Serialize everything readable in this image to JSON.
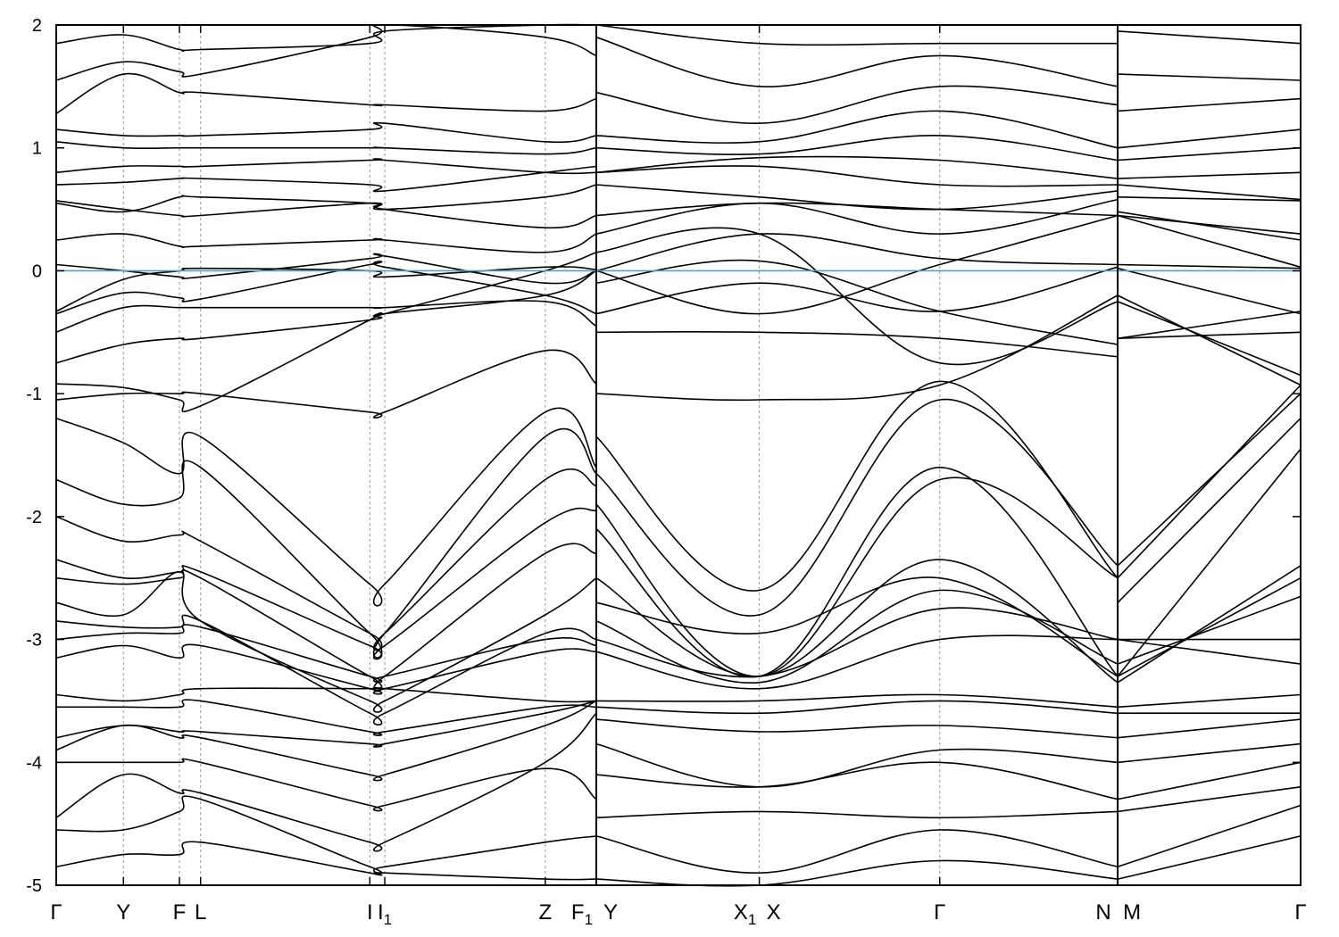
{
  "chart_data": {
    "type": "line",
    "title": "",
    "xlabel": "",
    "ylabel": "",
    "ylim": [
      -5,
      2
    ],
    "grid": false,
    "yticks": [
      "2",
      "1",
      "0",
      "-1",
      "-2",
      "-3",
      "-4",
      "-5"
    ],
    "fermi_level": 0,
    "kpoints": [
      {
        "label": "Γ",
        "sub": "",
        "x": 0.0
      },
      {
        "label": "Y",
        "sub": "",
        "x": 0.054
      },
      {
        "label": "F",
        "sub": "",
        "x": 0.099
      },
      {
        "label": "L",
        "sub": "",
        "x": 0.116
      },
      {
        "label": "I",
        "sub": "",
        "x": 0.252
      },
      {
        "label": "I",
        "sub": "1",
        "x": 0.264
      },
      {
        "label": "Z",
        "sub": "",
        "x": 0.393
      },
      {
        "label": "F",
        "sub": "1",
        "x": 0.434
      },
      {
        "label": "Y",
        "sub": "",
        "x": 0.434
      },
      {
        "label": "X",
        "sub": "1",
        "x": 0.565
      },
      {
        "label": "X",
        "sub": "",
        "x": 0.565
      },
      {
        "label": "Γ",
        "sub": "",
        "x": 0.71
      },
      {
        "label": "N",
        "sub": "",
        "x": 0.853
      },
      {
        "label": "M",
        "sub": "",
        "x": 0.853
      },
      {
        "label": "Γ",
        "sub": "",
        "x": 1.0
      }
    ],
    "path_breaks": [
      0.434,
      0.853
    ],
    "segment_nodes": [
      [
        0.0,
        0.054,
        0.099,
        0.116,
        0.252,
        0.264,
        0.393,
        0.434
      ],
      [
        0.434,
        0.565,
        0.71,
        0.853
      ],
      [
        0.853,
        1.0
      ]
    ],
    "series": [
      {
        "segments": [
          [
            -0.33,
            -0.07,
            0.0,
            0.02,
            0.0,
            -0.05,
            0.03,
            0.01
          ],
          [
            -0.1,
            0.08,
            -0.33,
            -0.6
          ],
          [
            -0.55,
            -0.33
          ]
        ]
      },
      {
        "segments": [
          [
            -0.35,
            -0.18,
            -0.22,
            -0.23,
            0.05,
            0.03,
            -0.2,
            -0.35
          ],
          [
            -0.35,
            -0.1,
            -0.33,
            0.03
          ],
          [
            0.02,
            -0.35
          ]
        ]
      },
      {
        "segments": [
          [
            -0.5,
            -0.3,
            -0.3,
            -0.3,
            -0.3,
            -0.3,
            -0.25,
            -0.45
          ],
          [
            -0.5,
            -0.5,
            -0.55,
            -0.7
          ],
          [
            -0.55,
            -0.5
          ]
        ]
      },
      {
        "segments": [
          [
            -0.75,
            -0.6,
            -0.55,
            -0.55,
            -0.4,
            -0.35,
            -0.2,
            0.0
          ],
          [
            0.0,
            -0.35,
            0.05,
            0.45
          ],
          [
            0.45,
            0.03
          ]
        ]
      },
      {
        "segments": [
          [
            -0.92,
            -0.95,
            -1.05,
            -1.1,
            -0.4,
            -0.35,
            0.0,
            0.15
          ],
          [
            0.15,
            0.3,
            -0.75,
            -0.25
          ],
          [
            -0.25,
            -0.85
          ]
        ]
      },
      {
        "segments": [
          [
            -1.05,
            -1.0,
            -1.0,
            -1.0,
            -1.15,
            -1.15,
            -0.65,
            -0.92
          ],
          [
            -1.0,
            -1.05,
            -0.93,
            -0.2
          ],
          [
            -0.2,
            -0.93
          ]
        ]
      },
      {
        "segments": [
          [
            0.05,
            0.0,
            -0.05,
            -0.05,
            0.1,
            0.12,
            -0.1,
            0.0
          ],
          [
            0.0,
            0.3,
            0.1,
            0.05
          ],
          [
            0.05,
            0.02
          ]
        ]
      },
      {
        "segments": [
          [
            0.25,
            0.3,
            0.2,
            0.2,
            0.25,
            0.25,
            0.15,
            0.3
          ],
          [
            0.3,
            0.55,
            0.3,
            0.58
          ],
          [
            0.48,
            0.25
          ]
        ]
      },
      {
        "segments": [
          [
            0.55,
            0.48,
            0.6,
            0.6,
            0.55,
            0.5,
            0.35,
            0.45
          ],
          [
            0.45,
            0.55,
            0.5,
            0.45
          ],
          [
            0.45,
            0.3
          ]
        ]
      },
      {
        "segments": [
          [
            0.57,
            0.5,
            0.45,
            0.45,
            0.55,
            0.5,
            0.6,
            0.7
          ],
          [
            0.7,
            0.6,
            0.5,
            0.65
          ],
          [
            0.6,
            0.57
          ]
        ]
      },
      {
        "segments": [
          [
            0.7,
            0.72,
            0.75,
            0.75,
            0.7,
            0.65,
            0.8,
            0.85
          ],
          [
            0.8,
            0.85,
            0.7,
            0.7
          ],
          [
            0.7,
            0.58
          ]
        ]
      },
      {
        "segments": [
          [
            0.8,
            0.85,
            0.85,
            0.85,
            0.9,
            0.9,
            0.8,
            0.8
          ],
          [
            0.8,
            0.92,
            0.9,
            0.75
          ],
          [
            0.75,
            0.8
          ]
        ]
      },
      {
        "segments": [
          [
            1.05,
            1.0,
            1.0,
            1.0,
            1.0,
            1.0,
            0.95,
            1.0
          ],
          [
            1.0,
            0.95,
            1.1,
            0.9
          ],
          [
            0.9,
            1.0
          ]
        ]
      },
      {
        "segments": [
          [
            1.15,
            1.1,
            1.1,
            1.1,
            1.15,
            1.2,
            1.05,
            1.1
          ],
          [
            1.1,
            1.05,
            1.3,
            1.0
          ],
          [
            1.0,
            1.15
          ]
        ]
      },
      {
        "segments": [
          [
            1.28,
            1.6,
            1.45,
            1.45,
            1.35,
            1.35,
            1.3,
            1.4
          ],
          [
            1.45,
            1.2,
            1.5,
            1.35
          ],
          [
            1.3,
            1.4
          ]
        ]
      },
      {
        "segments": [
          [
            1.55,
            1.7,
            1.62,
            1.6,
            1.9,
            2.0,
            1.9,
            1.75
          ],
          [
            1.9,
            1.5,
            1.75,
            1.5
          ],
          [
            1.6,
            1.55
          ]
        ]
      },
      {
        "segments": [
          [
            1.85,
            1.92,
            1.8,
            1.8,
            1.85,
            1.95,
            2.05,
            2.1
          ],
          [
            2.0,
            1.85,
            1.85,
            1.85
          ],
          [
            1.95,
            1.85
          ]
        ]
      },
      {
        "segments": [
          [
            -1.2,
            -1.4,
            -1.65,
            -1.35,
            -2.55,
            -2.55,
            -1.15,
            -1.6
          ],
          [
            -1.35,
            -2.6,
            -0.9,
            -2.5
          ],
          [
            -2.5,
            -0.93
          ]
        ]
      },
      {
        "segments": [
          [
            -1.7,
            -1.9,
            -1.85,
            -1.6,
            -2.95,
            -2.95,
            -1.35,
            -1.65
          ],
          [
            -1.65,
            -2.8,
            -1.05,
            -2.4
          ],
          [
            -2.4,
            -1.0
          ]
        ]
      },
      {
        "segments": [
          [
            -2.0,
            -2.2,
            -2.15,
            -2.2,
            -2.95,
            -2.95,
            -1.7,
            -1.75
          ],
          [
            -1.9,
            -3.3,
            -1.7,
            -2.5
          ],
          [
            -2.7,
            -1.2
          ]
        ]
      },
      {
        "segments": [
          [
            -2.35,
            -2.5,
            -2.45,
            -2.45,
            -3.05,
            -3.05,
            -2.05,
            -1.95
          ],
          [
            -2.1,
            -3.3,
            -1.6,
            -3.3
          ],
          [
            -3.3,
            -1.45
          ]
        ]
      },
      {
        "segments": [
          [
            -2.5,
            -2.55,
            -2.5,
            -2.5,
            -3.3,
            -3.3,
            -2.3,
            -2.3
          ],
          [
            -2.5,
            -3.3,
            -2.35,
            -3.35
          ],
          [
            -3.35,
            -2.4
          ]
        ]
      },
      {
        "segments": [
          [
            -2.7,
            -2.8,
            -2.45,
            -2.85,
            -3.5,
            -3.5,
            -2.8,
            -2.5
          ],
          [
            -2.7,
            -2.95,
            -2.5,
            -3.3
          ],
          [
            -3.3,
            -2.5
          ]
        ]
      },
      {
        "segments": [
          [
            -2.85,
            -2.9,
            -2.9,
            -2.85,
            -3.6,
            -3.6,
            -2.95,
            -3.0
          ],
          [
            -2.85,
            -3.35,
            -2.6,
            -3.2
          ],
          [
            -3.2,
            -2.65
          ]
        ]
      },
      {
        "segments": [
          [
            -3.0,
            -2.95,
            -2.95,
            -2.9,
            -3.3,
            -3.3,
            -3.0,
            -3.05
          ],
          [
            -3.0,
            -3.3,
            -2.75,
            -3.0
          ],
          [
            -3.0,
            -3.0
          ]
        ]
      },
      {
        "segments": [
          [
            -3.15,
            -3.05,
            -3.15,
            -3.05,
            -3.4,
            -3.4,
            -3.1,
            -3.1
          ],
          [
            -3.1,
            -3.4,
            -3.0,
            -3.0
          ],
          [
            -3.0,
            -3.2
          ]
        ]
      },
      {
        "segments": [
          [
            -3.45,
            -3.5,
            -3.45,
            -3.4,
            -3.4,
            -3.4,
            -3.5,
            -3.5
          ],
          [
            -3.5,
            -3.5,
            -3.45,
            -3.55
          ],
          [
            -3.55,
            -3.45
          ]
        ]
      },
      {
        "segments": [
          [
            -3.55,
            -3.55,
            -3.55,
            -3.5,
            -3.75,
            -3.75,
            -3.55,
            -3.55
          ],
          [
            -3.55,
            -3.6,
            -3.5,
            -3.6
          ],
          [
            -3.6,
            -3.6
          ]
        ]
      },
      {
        "segments": [
          [
            -3.8,
            -3.7,
            -3.75,
            -3.75,
            -3.85,
            -3.85,
            -3.6,
            -3.5
          ],
          [
            -3.65,
            -3.75,
            -3.7,
            -3.8
          ],
          [
            -3.8,
            -3.65
          ]
        ]
      },
      {
        "segments": [
          [
            -3.9,
            -3.7,
            -3.8,
            -3.8,
            -4.1,
            -4.1,
            -3.7,
            -3.5
          ],
          [
            -3.85,
            -4.2,
            -3.9,
            -4.0
          ],
          [
            -4.0,
            -3.85
          ]
        ]
      },
      {
        "segments": [
          [
            -4.0,
            -4.0,
            -4.0,
            -4.0,
            -4.35,
            -4.35,
            -4.05,
            -4.3
          ],
          [
            -4.1,
            -4.2,
            -4.0,
            -4.3
          ],
          [
            -4.3,
            -4.0
          ]
        ]
      },
      {
        "segments": [
          [
            -4.45,
            -4.1,
            -4.25,
            -4.25,
            -4.65,
            -4.65,
            -4.0,
            -3.6
          ],
          [
            -4.45,
            -4.4,
            -4.45,
            -4.4
          ],
          [
            -4.4,
            -4.2
          ]
        ]
      },
      {
        "segments": [
          [
            -4.55,
            -4.55,
            -4.4,
            -4.3,
            -4.85,
            -4.85,
            -4.65,
            -4.6
          ],
          [
            -4.6,
            -4.9,
            -4.55,
            -4.85
          ],
          [
            -4.85,
            -4.35
          ]
        ]
      },
      {
        "segments": [
          [
            -4.85,
            -4.75,
            -4.75,
            -4.65,
            -4.9,
            -4.9,
            -4.95,
            -4.95
          ],
          [
            -4.95,
            -5.0,
            -4.8,
            -4.95
          ],
          [
            -4.95,
            -4.6
          ]
        ]
      }
    ]
  }
}
